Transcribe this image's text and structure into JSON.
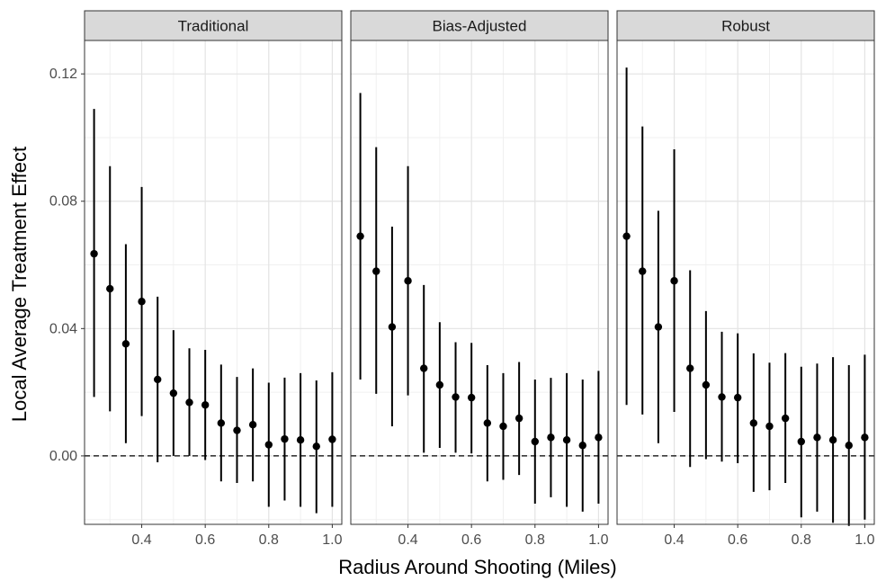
{
  "chart_data": {
    "type": "scatter",
    "subtype": "point-range facets",
    "xlabel": "Radius Around Shooting (Miles)",
    "ylabel": "Local Average Treatment Effect",
    "xlim": [
      0.22,
      1.03
    ],
    "ylim": [
      -0.0215,
      0.1305
    ],
    "x_ticks": [
      0.4,
      0.6,
      0.8,
      1.0
    ],
    "x_tick_labels": [
      "0.4",
      "0.6",
      "0.8",
      "1.0"
    ],
    "y_ticks": [
      0.0,
      0.04,
      0.08,
      0.12
    ],
    "y_tick_labels": [
      "0.00",
      "0.04",
      "0.08",
      "0.12"
    ],
    "reference_line": {
      "y": 0,
      "style": "dashed"
    },
    "grid": true,
    "x": [
      0.25,
      0.3,
      0.35,
      0.4,
      0.45,
      0.5,
      0.55,
      0.6,
      0.65,
      0.7,
      0.75,
      0.8,
      0.85,
      0.9,
      0.95,
      1.0
    ],
    "panels": [
      {
        "title": "Traditional",
        "estimate": [
          0.0635,
          0.0525,
          0.0352,
          0.0485,
          0.024,
          0.0197,
          0.0168,
          0.016,
          0.0103,
          0.008,
          0.0098,
          0.0035,
          0.0053,
          0.005,
          0.003,
          0.0052
        ],
        "lower": [
          0.0185,
          0.014,
          0.004,
          0.0125,
          -0.002,
          0.0,
          0.0,
          -0.0013,
          -0.008,
          -0.0085,
          -0.008,
          -0.016,
          -0.014,
          -0.016,
          -0.018,
          -0.016
        ],
        "upper": [
          0.109,
          0.091,
          0.0665,
          0.0845,
          0.05,
          0.0395,
          0.0338,
          0.0333,
          0.0287,
          0.0248,
          0.0275,
          0.023,
          0.0246,
          0.026,
          0.0237,
          0.0263
        ]
      },
      {
        "title": "Bias-Adjusted",
        "estimate": [
          0.069,
          0.058,
          0.0405,
          0.055,
          0.0275,
          0.0223,
          0.0185,
          0.0183,
          0.0103,
          0.0093,
          0.0118,
          0.0045,
          0.0058,
          0.005,
          0.0033,
          0.0058
        ],
        "lower": [
          0.024,
          0.0195,
          0.0093,
          0.019,
          0.001,
          0.0025,
          0.001,
          0.0008,
          -0.008,
          -0.0075,
          -0.006,
          -0.015,
          -0.013,
          -0.016,
          -0.0175,
          -0.015
        ],
        "upper": [
          0.114,
          0.097,
          0.072,
          0.091,
          0.0537,
          0.042,
          0.0357,
          0.0355,
          0.0285,
          0.026,
          0.0295,
          0.024,
          0.0245,
          0.026,
          0.024,
          0.0267
        ]
      },
      {
        "title": "Robust",
        "estimate": [
          0.069,
          0.058,
          0.0405,
          0.055,
          0.0275,
          0.0223,
          0.0185,
          0.0183,
          0.0103,
          0.0093,
          0.0118,
          0.0045,
          0.0058,
          0.005,
          0.0033,
          0.0058
        ],
        "lower": [
          0.016,
          0.013,
          0.004,
          0.0138,
          -0.0035,
          -0.001,
          -0.0018,
          -0.0023,
          -0.0113,
          -0.0108,
          -0.0085,
          -0.0193,
          -0.0175,
          -0.021,
          -0.022,
          -0.02
        ],
        "upper": [
          0.122,
          0.1035,
          0.077,
          0.0963,
          0.0583,
          0.0455,
          0.039,
          0.0385,
          0.0322,
          0.0293,
          0.0323,
          0.028,
          0.029,
          0.031,
          0.0285,
          0.0318
        ]
      }
    ]
  }
}
